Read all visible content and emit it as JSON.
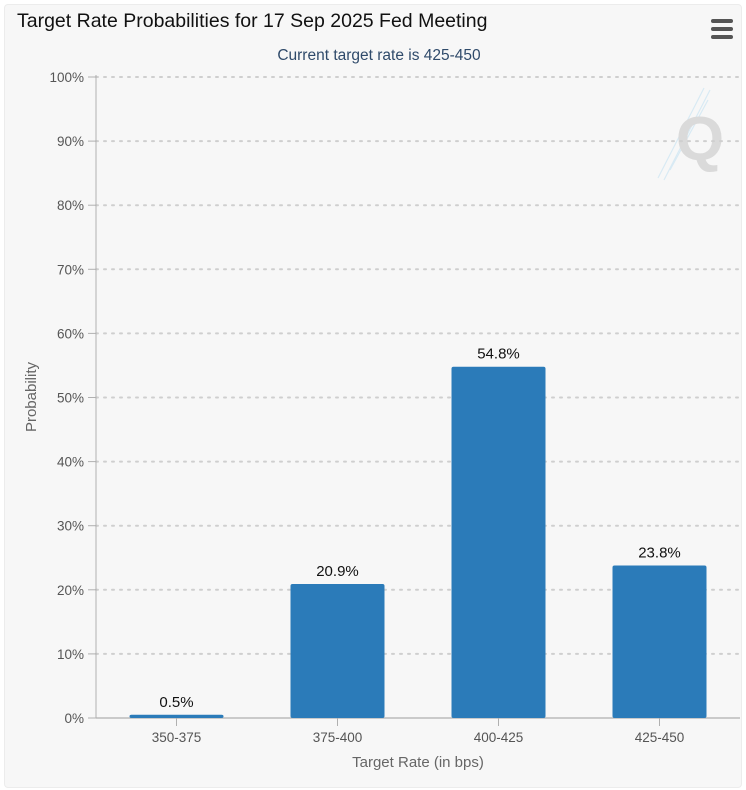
{
  "chart_data": {
    "type": "bar",
    "title": "Target Rate Probabilities for 17 Sep 2025 Fed Meeting",
    "subtitle": "Current target rate is 425-450",
    "xlabel": "Target Rate (in bps)",
    "ylabel": "Probability",
    "categories": [
      "350-375",
      "375-400",
      "400-425",
      "425-450"
    ],
    "values": [
      0.5,
      20.9,
      54.8,
      23.8
    ],
    "value_labels": [
      "0.5%",
      "20.9%",
      "54.8%",
      "23.8%"
    ],
    "ylim": [
      0,
      100
    ],
    "yticks": [
      0,
      10,
      20,
      30,
      40,
      50,
      60,
      70,
      80,
      90,
      100
    ],
    "ytick_labels": [
      "0%",
      "10%",
      "20%",
      "30%",
      "40%",
      "50%",
      "60%",
      "70%",
      "80%",
      "90%",
      "100%"
    ],
    "grid": "dotted horizontal",
    "bar_color": "#2b7bb9",
    "watermark_icon": "q-logo-icon"
  },
  "menu_icon": "hamburger-menu-icon"
}
